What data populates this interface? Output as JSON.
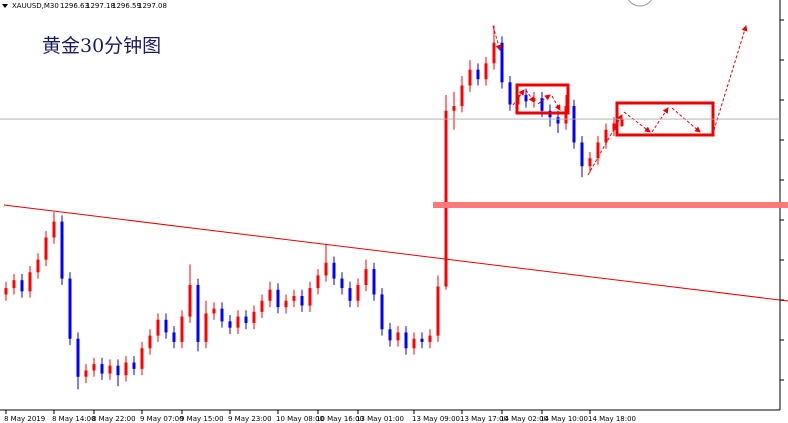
{
  "chart_data": {
    "type": "candlestick",
    "title": "黄金30分钟图",
    "symbol": "XAUUSD,M30",
    "up_color": "#ff0000",
    "down_color": "#0000ff",
    "ylim": [
      1278.7,
      1304.6
    ],
    "categories": [
      "8 May 2019",
      null,
      null,
      null,
      null,
      null,
      "8 May 14:00",
      null,
      null,
      null,
      null,
      "8 May 22:00",
      null,
      null,
      null,
      null,
      null,
      "9 May 07:00",
      null,
      null,
      null,
      null,
      "9 May 15:00",
      null,
      null,
      null,
      null,
      null,
      "9 May 23:00",
      null,
      null,
      null,
      null,
      null,
      "10 May 08:00",
      null,
      null,
      null,
      null,
      "10 May 16:00",
      null,
      null,
      null,
      null,
      "13 May 01:00",
      null,
      null,
      null,
      null,
      null,
      null,
      "13 May 09:00",
      null,
      null,
      null,
      null,
      null,
      "13 May 17:00",
      null,
      null,
      null,
      null,
      "14 May 02:00",
      null,
      null,
      null,
      null,
      "14 May 10:00",
      null,
      null,
      null,
      null,
      null,
      "14 May 18:00",
      null,
      null,
      null,
      null
    ],
    "ohlc": [
      [
        1286.0,
        1286.8,
        1285.6,
        1286.4
      ],
      [
        1286.4,
        1287.3,
        1286.0,
        1286.9
      ],
      [
        1286.9,
        1287.3,
        1285.8,
        1286.2
      ],
      [
        1286.2,
        1287.8,
        1285.8,
        1287.4
      ],
      [
        1287.4,
        1288.6,
        1287.0,
        1288.2
      ],
      [
        1288.2,
        1290.0,
        1287.8,
        1289.6
      ],
      [
        1289.6,
        1291.2,
        1289.2,
        1290.6
      ],
      [
        1290.6,
        1291.0,
        1286.6,
        1287.0
      ],
      [
        1287.0,
        1287.4,
        1282.8,
        1283.2
      ],
      [
        1283.2,
        1283.6,
        1280.0,
        1280.8
      ],
      [
        1280.8,
        1281.6,
        1280.4,
        1281.2
      ],
      [
        1281.2,
        1282.0,
        1280.8,
        1281.6
      ],
      [
        1281.6,
        1282.0,
        1280.6,
        1281.0
      ],
      [
        1281.0,
        1281.9,
        1280.6,
        1281.5
      ],
      [
        1281.5,
        1281.9,
        1280.2,
        1280.9
      ],
      [
        1280.9,
        1282.1,
        1280.5,
        1281.7
      ],
      [
        1281.7,
        1282.1,
        1280.9,
        1281.3
      ],
      [
        1281.3,
        1283.0,
        1280.9,
        1282.6
      ],
      [
        1282.6,
        1283.8,
        1282.2,
        1283.4
      ],
      [
        1283.4,
        1284.8,
        1283.0,
        1284.4
      ],
      [
        1284.4,
        1284.8,
        1283.2,
        1283.6
      ],
      [
        1283.6,
        1284.0,
        1282.6,
        1283.0
      ],
      [
        1283.0,
        1285.0,
        1282.6,
        1284.6
      ],
      [
        1284.6,
        1287.9,
        1284.2,
        1286.6
      ],
      [
        1286.6,
        1287.0,
        1282.4,
        1283.0
      ],
      [
        1283.0,
        1285.6,
        1282.6,
        1284.8
      ],
      [
        1284.8,
        1285.5,
        1284.4,
        1285.1
      ],
      [
        1285.1,
        1285.5,
        1283.9,
        1284.3
      ],
      [
        1284.3,
        1284.7,
        1283.5,
        1283.9
      ],
      [
        1283.9,
        1285.0,
        1283.5,
        1284.6
      ],
      [
        1284.6,
        1285.0,
        1283.8,
        1284.2
      ],
      [
        1284.2,
        1285.3,
        1283.8,
        1284.9
      ],
      [
        1284.9,
        1286.0,
        1284.5,
        1285.6
      ],
      [
        1285.6,
        1286.8,
        1285.2,
        1286.3
      ],
      [
        1286.3,
        1286.7,
        1284.8,
        1285.2
      ],
      [
        1285.2,
        1286.0,
        1284.8,
        1285.6
      ],
      [
        1285.6,
        1286.3,
        1285.2,
        1285.9
      ],
      [
        1285.9,
        1286.3,
        1284.9,
        1285.3
      ],
      [
        1285.3,
        1286.8,
        1284.9,
        1286.4
      ],
      [
        1286.4,
        1287.6,
        1286.0,
        1287.2
      ],
      [
        1287.2,
        1289.2,
        1286.8,
        1288.0
      ],
      [
        1288.0,
        1288.4,
        1286.6,
        1287.0
      ],
      [
        1287.0,
        1287.4,
        1286.0,
        1286.4
      ],
      [
        1286.4,
        1286.8,
        1285.2,
        1285.6
      ],
      [
        1285.6,
        1287.0,
        1285.2,
        1286.6
      ],
      [
        1286.6,
        1288.2,
        1286.2,
        1287.6
      ],
      [
        1287.6,
        1288.0,
        1285.6,
        1286.0
      ],
      [
        1286.0,
        1286.4,
        1283.4,
        1283.8
      ],
      [
        1283.8,
        1284.2,
        1282.7,
        1283.1
      ],
      [
        1283.1,
        1284.0,
        1282.7,
        1283.6
      ],
      [
        1283.6,
        1284.0,
        1282.2,
        1282.6
      ],
      [
        1282.6,
        1283.6,
        1282.2,
        1283.2
      ],
      [
        1283.2,
        1283.6,
        1282.6,
        1283.0
      ],
      [
        1283.0,
        1283.8,
        1282.6,
        1283.4
      ],
      [
        1283.4,
        1287.2,
        1283.0,
        1286.5
      ],
      [
        1286.5,
        1298.6,
        1286.3,
        1297.6
      ],
      [
        1297.6,
        1298.8,
        1296.4,
        1297.9
      ],
      [
        1297.9,
        1299.8,
        1297.5,
        1299.2
      ],
      [
        1299.2,
        1300.8,
        1298.8,
        1300.2
      ],
      [
        1300.2,
        1300.6,
        1299.2,
        1299.6
      ],
      [
        1299.6,
        1301.0,
        1299.2,
        1300.6
      ],
      [
        1300.6,
        1303.0,
        1300.2,
        1301.9
      ],
      [
        1301.9,
        1302.3,
        1299.0,
        1299.4
      ],
      [
        1299.4,
        1299.8,
        1297.6,
        1298.0
      ],
      [
        1298.0,
        1299.0,
        1297.6,
        1298.6
      ],
      [
        1298.6,
        1299.0,
        1297.8,
        1298.2
      ],
      [
        1298.2,
        1298.8,
        1297.8,
        1298.4
      ],
      [
        1298.4,
        1298.8,
        1297.2,
        1297.6
      ],
      [
        1297.6,
        1298.0,
        1296.6,
        1297.2
      ],
      [
        1297.2,
        1297.6,
        1296.2,
        1296.8
      ],
      [
        1296.8,
        1298.6,
        1296.4,
        1297.9
      ],
      [
        1297.9,
        1298.3,
        1295.2,
        1295.6
      ],
      [
        1295.6,
        1296.0,
        1293.4,
        1294.1
      ],
      [
        1294.1,
        1295.0,
        1293.7,
        1294.6
      ],
      [
        1294.6,
        1296.0,
        1294.2,
        1295.6
      ],
      [
        1295.6,
        1296.8,
        1295.2,
        1296.4
      ],
      [
        1296.4,
        1297.2,
        1296.0,
        1296.8
      ],
      [
        1296.63,
        1297.18,
        1296.59,
        1297.08
      ]
    ]
  }
}
